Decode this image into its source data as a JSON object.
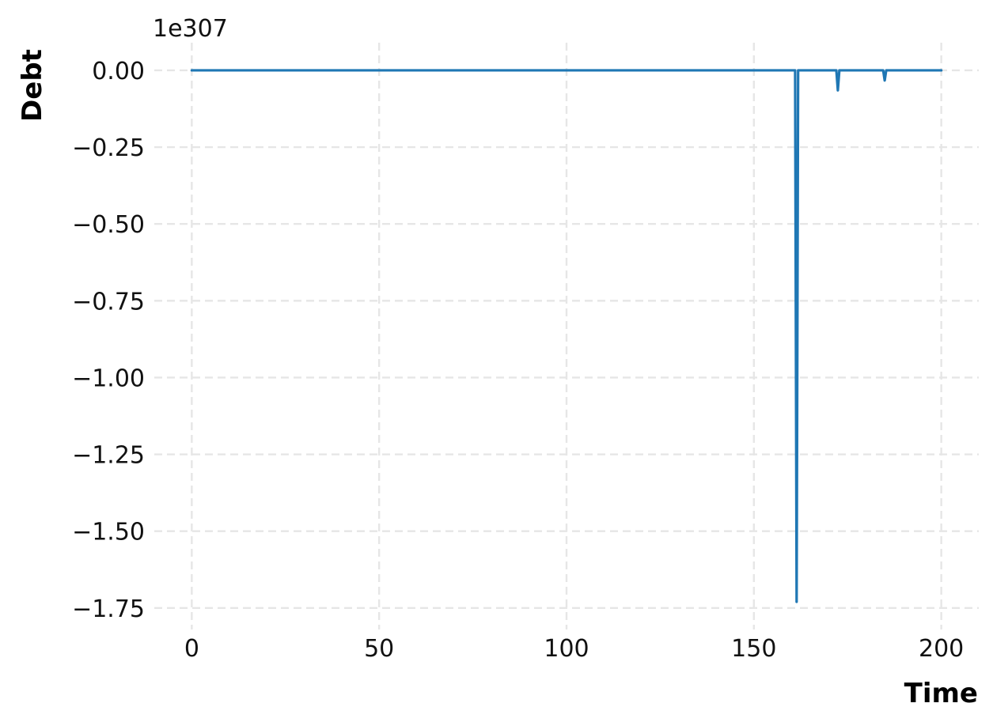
{
  "chart_data": {
    "type": "line",
    "title": "",
    "xlabel": "Time",
    "ylabel": "Debt",
    "y_offset_label": "1e307",
    "xlim": [
      -10,
      210
    ],
    "ylim": [
      -1.82,
      0.09
    ],
    "x_ticks": [
      0,
      50,
      100,
      150,
      200
    ],
    "x_tick_labels": [
      "0",
      "50",
      "100",
      "150",
      "200"
    ],
    "y_ticks": [
      0.0,
      -0.25,
      -0.5,
      -0.75,
      -1.0,
      -1.25,
      -1.5,
      -1.75
    ],
    "y_tick_labels": [
      "0.00",
      "−0.25",
      "−0.50",
      "−0.75",
      "−1.00",
      "−1.25",
      "−1.50",
      "−1.75"
    ],
    "grid": true,
    "legend": "none",
    "line_color": "#1f77b4",
    "series": [
      {
        "x": [
          0,
          161,
          161.4,
          161.8,
          172,
          172.4,
          172.8,
          184.5,
          184.9,
          185.3,
          200
        ],
        "values": [
          0,
          0,
          -1.73,
          0,
          0,
          -0.065,
          0,
          0,
          -0.033,
          0,
          0
        ]
      }
    ]
  }
}
